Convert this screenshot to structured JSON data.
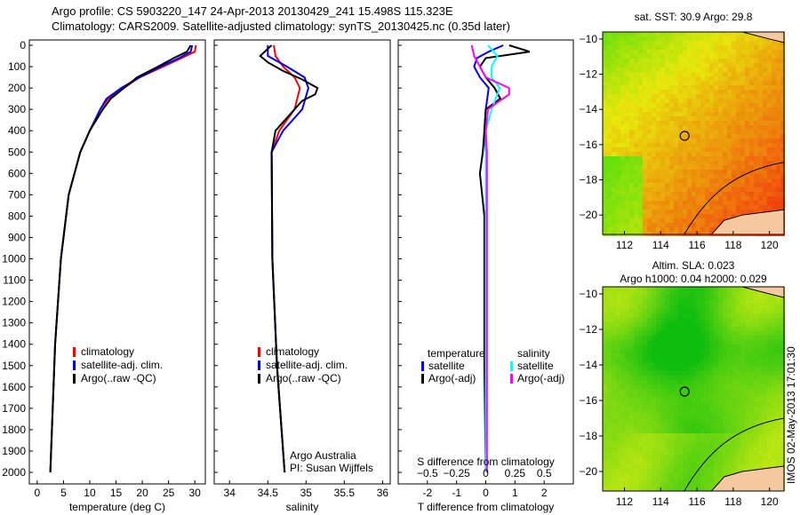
{
  "title": {
    "line1": "Argo profile: CS 5903220_147 24-Apr-2013 20130429_241 15.498S 115.323E",
    "line2": "Climatology: CARS2009. Satellite-adjusted climatology: synTS_20130425.nc (0.35d later)"
  },
  "side_label": "IMOS 02-May-2013 17:01:30",
  "colors": {
    "climatology": "#ff0000",
    "satellite": "#0000ff",
    "argo": "#000000",
    "sal_satellite": "#00ffff",
    "sal_argo": "#ff00ff",
    "land": "#f5c8a0"
  },
  "chart_data": [
    {
      "type": "line",
      "xlabel": "temperature (deg C)",
      "ylabel": "",
      "xlim": [
        -1.5,
        32
      ],
      "ylim": [
        2055,
        -25
      ],
      "xticks": [
        0,
        5,
        10,
        15,
        20,
        25,
        30
      ],
      "yticks": [
        0,
        100,
        200,
        300,
        400,
        500,
        600,
        700,
        800,
        900,
        1000,
        1100,
        1200,
        1300,
        1400,
        1500,
        1600,
        1700,
        1800,
        1900,
        2000
      ],
      "legend": [
        "climatology",
        "satellite-adj. clim.",
        "Argo(..raw -QC)"
      ],
      "series": [
        {
          "name": "climatology",
          "color": "#ff0000",
          "depth": [
            0,
            30,
            60,
            100,
            150,
            200,
            250,
            300,
            400,
            500,
            700,
            1000,
            1400,
            2000
          ],
          "values": [
            30.2,
            30,
            27.5,
            24,
            19.5,
            16.5,
            13.5,
            12,
            10,
            8.2,
            6,
            4.5,
            3.4,
            2.5
          ]
        },
        {
          "name": "satellite-adj. clim.",
          "color": "#0000ff",
          "depth": [
            0,
            30,
            60,
            100,
            150,
            200,
            250,
            300,
            400,
            500,
            700,
            1000,
            1400,
            2000
          ],
          "values": [
            29.5,
            29.2,
            27,
            23.5,
            19.5,
            16,
            13.2,
            12,
            10,
            8.2,
            6,
            4.5,
            3.4,
            2.5
          ]
        },
        {
          "name": "Argo(..raw -QC)",
          "color": "#000000",
          "depth": [
            0,
            30,
            60,
            100,
            150,
            200,
            250,
            300,
            400,
            500,
            700,
            1000,
            1400,
            2000
          ],
          "values": [
            29.2,
            28.5,
            26,
            23,
            19,
            16.5,
            14,
            12.5,
            10,
            8.2,
            6,
            4.5,
            3.4,
            2.5
          ]
        }
      ]
    },
    {
      "type": "line",
      "xlabel": "salinity",
      "xlim": [
        33.8,
        36.1
      ],
      "ylim": [
        2055,
        -25
      ],
      "xticks": [
        34,
        34.5,
        35,
        35.5,
        36
      ],
      "legend": [
        "climatology",
        "satellite-adj. clim.",
        "Argo(..raw -QC)"
      ],
      "annotation": [
        "Argo Australia",
        "PI: Susan Wijffels"
      ],
      "series": [
        {
          "name": "climatology",
          "color": "#ff0000",
          "depth": [
            0,
            50,
            100,
            150,
            200,
            300,
            400,
            500,
            1000,
            1500,
            2000
          ],
          "values": [
            34.58,
            34.6,
            34.7,
            34.85,
            34.92,
            34.85,
            34.65,
            34.55,
            34.56,
            34.62,
            34.72
          ]
        },
        {
          "name": "satellite-adj. clim.",
          "color": "#0000ff",
          "depth": [
            0,
            50,
            100,
            150,
            200,
            300,
            400,
            500,
            1000,
            1500,
            2000
          ],
          "values": [
            34.5,
            34.5,
            34.75,
            34.98,
            35.03,
            34.95,
            34.7,
            34.55,
            34.56,
            34.62,
            34.72
          ]
        },
        {
          "name": "Argo(..raw -QC)",
          "color": "#000000",
          "depth": [
            0,
            50,
            80,
            120,
            160,
            200,
            230,
            260,
            300,
            400,
            500,
            1000,
            1500,
            2000
          ],
          "values": [
            34.55,
            34.4,
            34.5,
            34.7,
            34.95,
            35.15,
            35.12,
            34.95,
            34.85,
            34.6,
            34.55,
            34.56,
            34.62,
            34.72
          ]
        }
      ]
    },
    {
      "type": "line",
      "xlabel": "T difference from climatology",
      "x2label": "S difference from climatology",
      "xlim": [
        -3,
        3
      ],
      "x2lim": [
        -0.75,
        0.75
      ],
      "ylim": [
        2055,
        -25
      ],
      "xticks": [
        -2,
        -1,
        0,
        1,
        2
      ],
      "x2ticks": [
        -0.5,
        -0.25,
        0,
        0.25,
        0.5
      ],
      "legend": {
        "temperature": "temperature",
        "salinity": "salinity",
        "t_sat": "satellite",
        "t_argo": "Argo(-adj)",
        "s_sat": "satellite",
        "s_argo": "Argo(-adj)"
      },
      "series": [
        {
          "name": "T satellite",
          "color": "#0000ff",
          "depth": [
            0,
            30,
            60,
            100,
            150,
            200,
            300,
            400,
            500,
            2000
          ],
          "values": [
            0.6,
            0.1,
            -0.3,
            -0.4,
            -0.2,
            0.1,
            0,
            -0.05,
            0,
            0
          ]
        },
        {
          "name": "T Argo(-adj)",
          "color": "#000000",
          "depth": [
            0,
            30,
            60,
            100,
            150,
            200,
            250,
            300,
            400,
            500,
            600,
            800,
            1500,
            2000
          ],
          "values": [
            0.8,
            1.5,
            0,
            -0.2,
            0,
            0.3,
            0.5,
            0,
            -0.05,
            -0.1,
            -0.2,
            -0.05,
            -0.05,
            0
          ]
        },
        {
          "name": "S satellite",
          "color": "#00ffff",
          "depth": [
            0,
            50,
            100,
            150,
            200,
            300,
            400,
            500,
            2000
          ],
          "values": [
            0.02,
            0.1,
            0.05,
            0.05,
            0.12,
            0.05,
            0,
            0,
            0
          ]
        },
        {
          "name": "S Argo(-adj)",
          "color": "#ff00ff",
          "depth": [
            0,
            50,
            100,
            150,
            200,
            230,
            260,
            300,
            400,
            500,
            2000
          ],
          "values": [
            -0.12,
            -0.1,
            -0.05,
            0,
            0.2,
            0.2,
            0.12,
            0.02,
            0,
            0.01,
            0.01
          ]
        }
      ]
    },
    {
      "type": "heatmap",
      "title": "sat. SST: 30.9 Argo: 29.8",
      "xticks": [
        112,
        114,
        116,
        118,
        120
      ],
      "yticks": [
        -10,
        -12,
        -14,
        -16,
        -18,
        -20
      ],
      "xlim": [
        110.8,
        120.8
      ],
      "ylim": [
        -21.1,
        -9.6
      ],
      "marker": [
        115.32,
        -15.5
      ]
    },
    {
      "type": "heatmap",
      "title_lines": [
        "Altim. SLA: 0.023",
        "Argo h1000: 0.04 h2000: 0.029"
      ],
      "xticks": [
        112,
        114,
        116,
        118,
        120
      ],
      "yticks": [
        -10,
        -12,
        -14,
        -16,
        -18,
        -20
      ],
      "xlim": [
        110.8,
        120.8
      ],
      "ylim": [
        -21.1,
        -9.6
      ],
      "marker": [
        115.32,
        -15.5
      ]
    }
  ]
}
